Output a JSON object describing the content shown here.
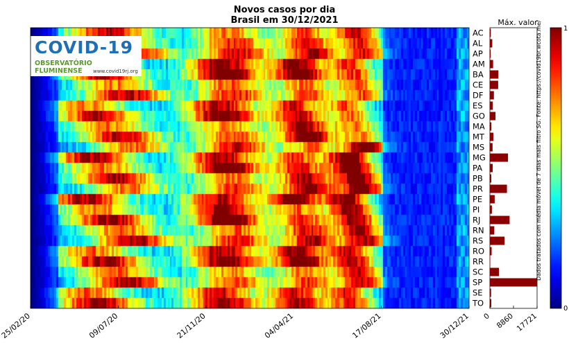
{
  "title": "Novos casos por dia",
  "subtitle": "Brasil em 30/12/2021",
  "max_label": "Máx. valor",
  "source_note": "Dados tratados com média móvel de 7 dias mais filtro SG. Fonte: https://covid19br.wcota.me/",
  "logo": {
    "title": "COVID-19",
    "subtitle": "OBSERVATÓRIO FLUMINENSE",
    "url": "www.covid19rj.org"
  },
  "colorbar": {
    "min_label": "0",
    "max_label": "1"
  },
  "chart_data": [
    {
      "type": "heatmap",
      "title": "Novos casos por dia",
      "subtitle": "Brasil em 30/12/2021",
      "x_ticks": [
        "25/02/20",
        "09/07/20",
        "21/11/20",
        "04/04/21",
        "17/08/21",
        "30/12/21"
      ],
      "x_range": [
        "25/02/20",
        "30/12/21"
      ],
      "rows": [
        "AC",
        "AL",
        "AP",
        "AM",
        "BA",
        "CE",
        "DF",
        "ES",
        "GO",
        "MA",
        "MT",
        "MS",
        "MG",
        "PA",
        "PB",
        "PR",
        "PE",
        "PI",
        "RJ",
        "RN",
        "RS",
        "RO",
        "RR",
        "SC",
        "SP",
        "SE",
        "TO"
      ],
      "color_range": [
        0,
        1
      ],
      "colormap": "jet"
    },
    {
      "type": "bar",
      "orientation": "horizontal",
      "title": "Máx. valor",
      "categories": [
        "AC",
        "AL",
        "AP",
        "AM",
        "BA",
        "CE",
        "DF",
        "ES",
        "GO",
        "MA",
        "MT",
        "MS",
        "MG",
        "PA",
        "PB",
        "PR",
        "PE",
        "PI",
        "RJ",
        "RN",
        "RS",
        "RO",
        "RR",
        "SC",
        "SP",
        "SE",
        "TO"
      ],
      "values": [
        360,
        890,
        300,
        1200,
        3200,
        3100,
        1500,
        1100,
        2100,
        560,
        1300,
        1000,
        6800,
        1050,
        520,
        6400,
        1800,
        750,
        7400,
        1650,
        5500,
        650,
        130,
        3400,
        17721,
        450,
        520
      ],
      "x_ticks": [
        "0",
        "8860",
        "17721"
      ],
      "xlim": [
        0,
        17721
      ]
    }
  ]
}
